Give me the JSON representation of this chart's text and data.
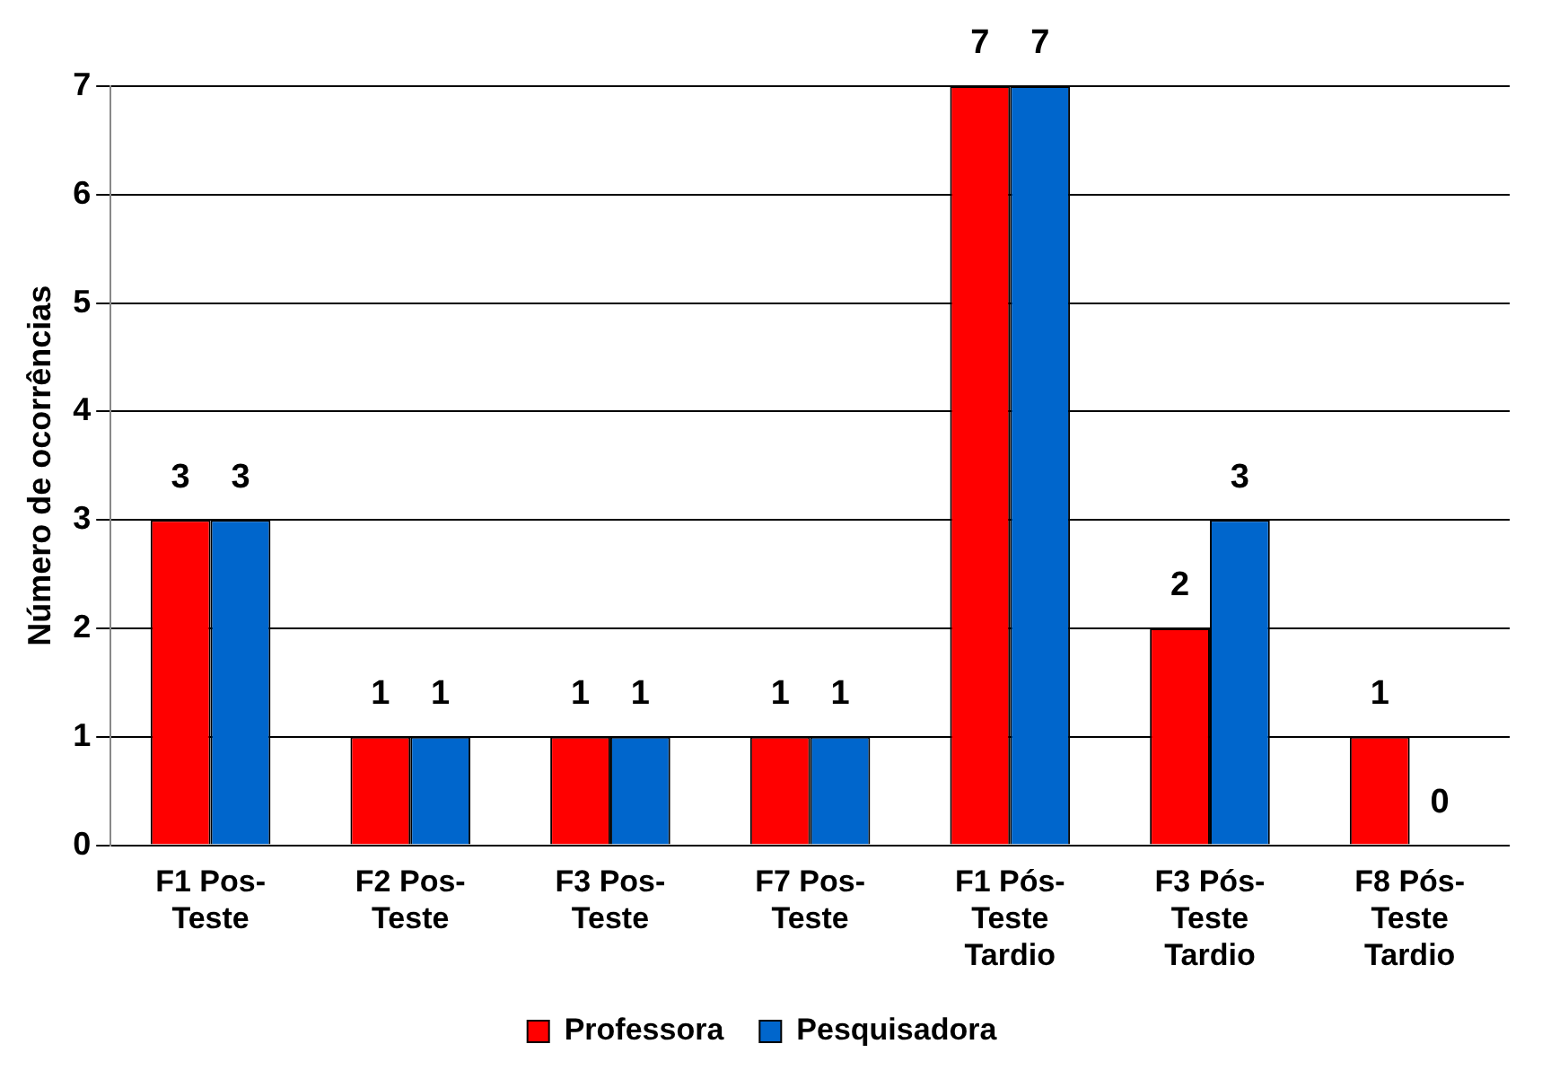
{
  "chart_data": {
    "type": "bar",
    "ylabel": "Número de ocorrências",
    "categories": [
      "F1 Pos-Teste",
      "F2 Pos-Teste",
      "F3 Pos-Teste",
      "F7 Pos-Teste",
      "F1 Pós-Teste Tardio",
      "F3 Pós-Teste Tardio",
      "F8 Pós-Teste Tardio"
    ],
    "series": [
      {
        "name": "Professora",
        "color": "#ff0000",
        "values": [
          3,
          1,
          1,
          1,
          7,
          2,
          1
        ]
      },
      {
        "name": "Pesquisadora",
        "color": "#0066cc",
        "values": [
          3,
          1,
          1,
          1,
          7,
          3,
          0
        ]
      }
    ],
    "ylim": [
      0,
      7
    ],
    "yticks": [
      0,
      1,
      2,
      3,
      4,
      5,
      6,
      7
    ],
    "grid": "y",
    "legend": "bottom",
    "data_labels": true
  }
}
